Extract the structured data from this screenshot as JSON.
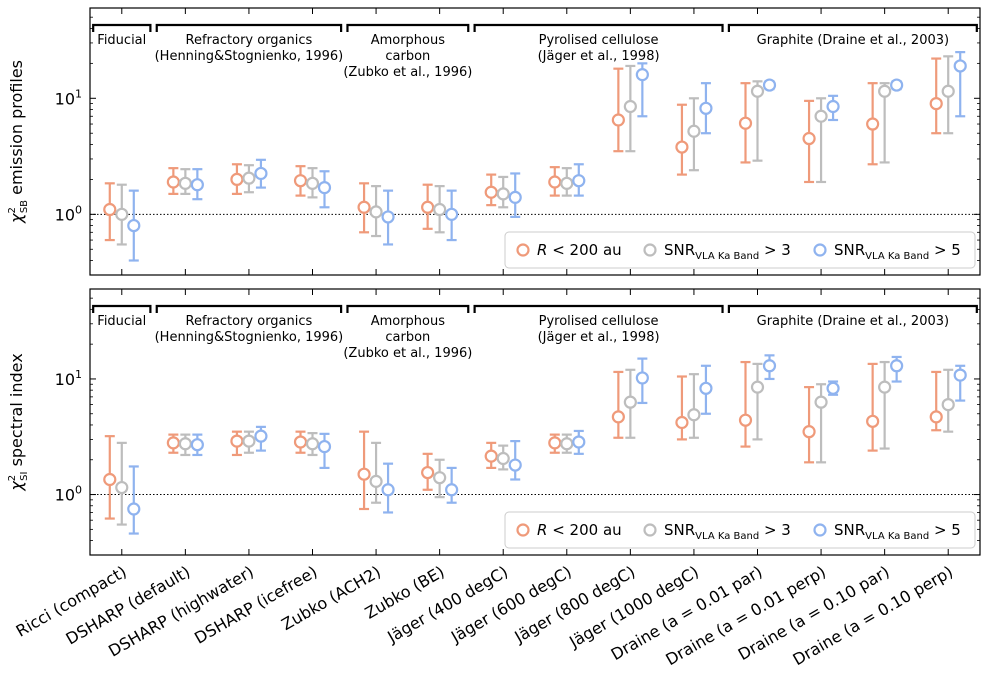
{
  "chart_data": [
    {
      "type": "errorbar",
      "panel": "top",
      "ylabel": "χ²_SB emission profiles",
      "ylabel_main": "χ",
      "ylabel_sup": "2",
      "ylabel_sub": "SB",
      "ylabel_rest": " emission profiles",
      "yscale": "log",
      "ylim": [
        0.3,
        60
      ],
      "yticks": [
        {
          "value": 1,
          "label": "10",
          "exp": "0"
        },
        {
          "value": 10,
          "label": "10",
          "exp": "1"
        }
      ],
      "reference_line": 1,
      "series": [
        {
          "name": "R < 200 au",
          "color": "#ef9a7a",
          "points": [
            [
              1.1,
              0.6,
              1.85
            ],
            [
              1.9,
              1.5,
              2.5
            ],
            [
              2.0,
              1.5,
              2.7
            ],
            [
              1.95,
              1.45,
              2.6
            ],
            [
              1.15,
              0.7,
              1.85
            ],
            [
              1.15,
              0.75,
              1.8
            ],
            [
              1.55,
              1.2,
              2.2
            ],
            [
              1.9,
              1.45,
              2.55
            ],
            [
              6.5,
              3.5,
              18
            ],
            [
              3.8,
              2.2,
              8.8
            ],
            [
              6.1,
              2.8,
              13.5
            ],
            [
              4.5,
              1.9,
              9.5
            ],
            [
              6.0,
              2.7,
              13.5
            ],
            [
              9.0,
              5.0,
              22
            ]
          ]
        },
        {
          "name": "SNR_VLA Ka Band > 3",
          "color": "#bdbdbd",
          "points": [
            [
              1.0,
              0.55,
              1.8
            ],
            [
              1.85,
              1.5,
              2.45
            ],
            [
              2.05,
              1.55,
              2.65
            ],
            [
              1.85,
              1.4,
              2.5
            ],
            [
              1.05,
              0.65,
              1.75
            ],
            [
              1.1,
              0.7,
              1.75
            ],
            [
              1.5,
              1.15,
              2.1
            ],
            [
              1.85,
              1.45,
              2.5
            ],
            [
              8.5,
              3.5,
              19
            ],
            [
              5.2,
              2.4,
              10
            ],
            [
              11.5,
              2.9,
              14
            ],
            [
              7.0,
              1.9,
              10
            ],
            [
              11.5,
              2.8,
              13.5
            ],
            [
              11.5,
              5.0,
              23
            ]
          ]
        },
        {
          "name": "SNR_VLA Ka Band > 5",
          "color": "#8fb3ef",
          "points": [
            [
              0.8,
              0.4,
              1.6
            ],
            [
              1.8,
              1.35,
              2.45
            ],
            [
              2.25,
              1.7,
              2.95
            ],
            [
              1.7,
              1.15,
              2.35
            ],
            [
              0.95,
              0.55,
              1.6
            ],
            [
              1.0,
              0.6,
              1.6
            ],
            [
              1.4,
              0.95,
              2.25
            ],
            [
              1.95,
              1.45,
              2.7
            ],
            [
              16,
              7.0,
              20
            ],
            [
              8.2,
              5.0,
              13.5
            ],
            [
              13.0,
              12.0,
              14.0
            ],
            [
              8.5,
              6.5,
              10.5
            ],
            [
              13.0,
              12.0,
              14.0
            ],
            [
              19,
              7.0,
              25
            ]
          ]
        }
      ]
    },
    {
      "type": "errorbar",
      "panel": "bottom",
      "ylabel": "χ²_SI spectral index",
      "ylabel_main": "χ",
      "ylabel_sup": "2",
      "ylabel_sub": "SI",
      "ylabel_rest": " spectral index",
      "yscale": "log",
      "ylim": [
        0.3,
        60
      ],
      "yticks": [
        {
          "value": 1,
          "label": "10",
          "exp": "0"
        },
        {
          "value": 10,
          "label": "10",
          "exp": "1"
        }
      ],
      "reference_line": 1,
      "series": [
        {
          "name": "R < 200 au",
          "color": "#ef9a7a",
          "points": [
            [
              1.35,
              0.62,
              3.2
            ],
            [
              2.8,
              2.3,
              3.3
            ],
            [
              2.9,
              2.2,
              3.5
            ],
            [
              2.85,
              2.3,
              3.5
            ],
            [
              1.5,
              0.75,
              3.5
            ],
            [
              1.55,
              1.1,
              2.25
            ],
            [
              2.15,
              1.7,
              2.8
            ],
            [
              2.8,
              2.3,
              3.3
            ],
            [
              4.7,
              3.1,
              11.5
            ],
            [
              4.2,
              3.0,
              10.5
            ],
            [
              4.4,
              2.6,
              14
            ],
            [
              3.5,
              1.9,
              8.5
            ],
            [
              4.3,
              2.4,
              13.5
            ],
            [
              4.7,
              3.6,
              11.5
            ]
          ]
        },
        {
          "name": "SNR_VLA Ka Band > 3",
          "color": "#bdbdbd",
          "points": [
            [
              1.15,
              0.55,
              2.8
            ],
            [
              2.75,
              2.2,
              3.3
            ],
            [
              2.9,
              2.3,
              3.5
            ],
            [
              2.75,
              2.2,
              3.4
            ],
            [
              1.3,
              0.85,
              2.8
            ],
            [
              1.4,
              0.95,
              2.0
            ],
            [
              2.05,
              1.65,
              2.65
            ],
            [
              2.75,
              2.3,
              3.3
            ],
            [
              6.3,
              3.1,
              12
            ],
            [
              4.9,
              3.1,
              11
            ],
            [
              8.5,
              3.0,
              13.5
            ],
            [
              6.3,
              1.9,
              9.0
            ],
            [
              8.5,
              2.5,
              14
            ],
            [
              6.0,
              3.5,
              12
            ]
          ]
        },
        {
          "name": "SNR_VLA Ka Band > 5",
          "color": "#8fb3ef",
          "points": [
            [
              0.75,
              0.46,
              1.75
            ],
            [
              2.7,
              2.2,
              3.3
            ],
            [
              3.2,
              2.4,
              3.85
            ],
            [
              2.6,
              1.7,
              3.35
            ],
            [
              1.1,
              0.7,
              1.85
            ],
            [
              1.1,
              0.85,
              1.7
            ],
            [
              1.8,
              1.35,
              2.9
            ],
            [
              2.85,
              2.25,
              3.55
            ],
            [
              10.2,
              6.2,
              15
            ],
            [
              8.3,
              5.0,
              13
            ],
            [
              13.0,
              10.0,
              16
            ],
            [
              8.3,
              7.3,
              9.5
            ],
            [
              13.0,
              9.5,
              15.5
            ],
            [
              10.8,
              6.5,
              13
            ]
          ]
        }
      ]
    }
  ],
  "categories": [
    {
      "label": "Ricci (compact)"
    },
    {
      "label": "DSHARP (default)"
    },
    {
      "label": "DSHARP (highwater)"
    },
    {
      "label": "DSHARP (icefree)"
    },
    {
      "label": "Zubko (ACH2)"
    },
    {
      "label": "Zubko (BE)"
    },
    {
      "label": "Jäger  (400 degC)"
    },
    {
      "label": "Jäger  (600 degC)"
    },
    {
      "label": "Jäger  (800 degC)"
    },
    {
      "label": "Jäger  (1000 degC)"
    },
    {
      "label": "Draine (a = 0.01 par)"
    },
    {
      "label": "Draine (a = 0.01 perp)"
    },
    {
      "label": "Draine (a = 0.10 par)"
    },
    {
      "label": "Draine (a = 0.10 perp)"
    }
  ],
  "groups": [
    {
      "lines": [
        "Fiducial"
      ],
      "from": 0,
      "to": 0
    },
    {
      "lines": [
        "Refractory organics",
        "(Henning&Stognienko, 1996)"
      ],
      "from": 1,
      "to": 3
    },
    {
      "lines": [
        "Amorphous",
        "carbon",
        "(Zubko et al., 1996)"
      ],
      "from": 4,
      "to": 5
    },
    {
      "lines": [
        "Pyrolised cellulose",
        "(Jäger et al., 1998)"
      ],
      "from": 6,
      "to": 9
    },
    {
      "lines": [
        "Graphite (Draine et al., 2003)"
      ],
      "from": 10,
      "to": 13
    }
  ],
  "legend": [
    {
      "prefix": "R",
      "sub": "",
      "suffix": " < 200 au"
    },
    {
      "prefix": "SNR",
      "sub": "VLA Ka Band",
      "suffix": " > 3"
    },
    {
      "prefix": "SNR",
      "sub": "VLA Ka Band",
      "suffix": " > 5"
    }
  ]
}
